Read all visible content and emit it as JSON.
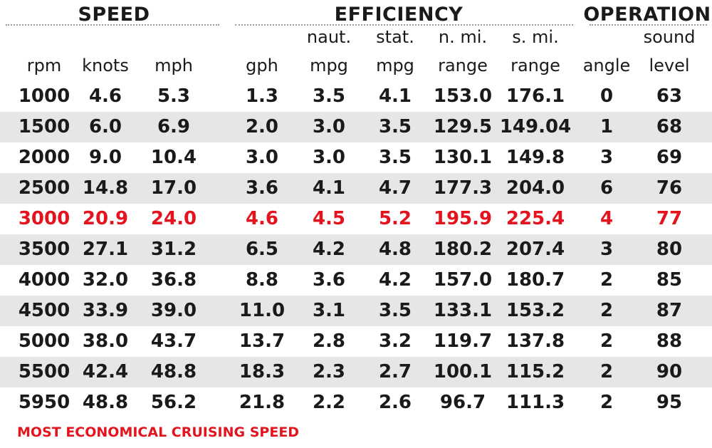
{
  "groups": [
    {
      "title": "SPEED"
    },
    {
      "title": "EFFICIENCY"
    },
    {
      "title": "OPERATION"
    }
  ],
  "headers": [
    {
      "top": "",
      "bottom": "rpm"
    },
    {
      "top": "",
      "bottom": "knots"
    },
    {
      "top": "",
      "bottom": "mph"
    },
    {
      "top": "",
      "bottom": "gph"
    },
    {
      "top": "naut.",
      "bottom": "mpg"
    },
    {
      "top": "stat.",
      "bottom": "mpg"
    },
    {
      "top": "n. mi.",
      "bottom": "range"
    },
    {
      "top": "s. mi.",
      "bottom": "range"
    },
    {
      "top": "",
      "bottom": "angle"
    },
    {
      "top": "sound",
      "bottom": "level"
    }
  ],
  "highlight_color": "#e3141d",
  "shade_color": "#e6e6e6",
  "chart_data": {
    "type": "table",
    "columns": [
      "rpm",
      "knots",
      "mph",
      "gph",
      "naut. mpg",
      "stat. mpg",
      "n. mi. range",
      "s. mi. range",
      "angle",
      "sound level"
    ],
    "rows": [
      [
        "1000",
        "4.6",
        "5.3",
        "1.3",
        "3.5",
        "4.1",
        "153.0",
        "176.1",
        "0",
        "63"
      ],
      [
        "1500",
        "6.0",
        "6.9",
        "2.0",
        "3.0",
        "3.5",
        "129.5",
        "149.04",
        "1",
        "68"
      ],
      [
        "2000",
        "9.0",
        "10.4",
        "3.0",
        "3.0",
        "3.5",
        "130.1",
        "149.8",
        "3",
        "69"
      ],
      [
        "2500",
        "14.8",
        "17.0",
        "3.6",
        "4.1",
        "4.7",
        "177.3",
        "204.0",
        "6",
        "76"
      ],
      [
        "3000",
        "20.9",
        "24.0",
        "4.6",
        "4.5",
        "5.2",
        "195.9",
        "225.4",
        "4",
        "77"
      ],
      [
        "3500",
        "27.1",
        "31.2",
        "6.5",
        "4.2",
        "4.8",
        "180.2",
        "207.4",
        "3",
        "80"
      ],
      [
        "4000",
        "32.0",
        "36.8",
        "8.8",
        "3.6",
        "4.2",
        "157.0",
        "180.7",
        "2",
        "85"
      ],
      [
        "4500",
        "33.9",
        "39.0",
        "11.0",
        "3.1",
        "3.5",
        "133.1",
        "153.2",
        "2",
        "87"
      ],
      [
        "5000",
        "38.0",
        "43.7",
        "13.7",
        "2.8",
        "3.2",
        "119.7",
        "137.8",
        "2",
        "88"
      ],
      [
        "5500",
        "42.4",
        "48.8",
        "18.3",
        "2.3",
        "2.7",
        "100.1",
        "115.2",
        "2",
        "90"
      ],
      [
        "5950",
        "48.8",
        "56.2",
        "21.8",
        "2.2",
        "2.6",
        "96.7",
        "111.3",
        "2",
        "95"
      ]
    ],
    "highlight_rpm": "3000"
  },
  "footer": "MOST ECONOMICAL CRUISING SPEED"
}
